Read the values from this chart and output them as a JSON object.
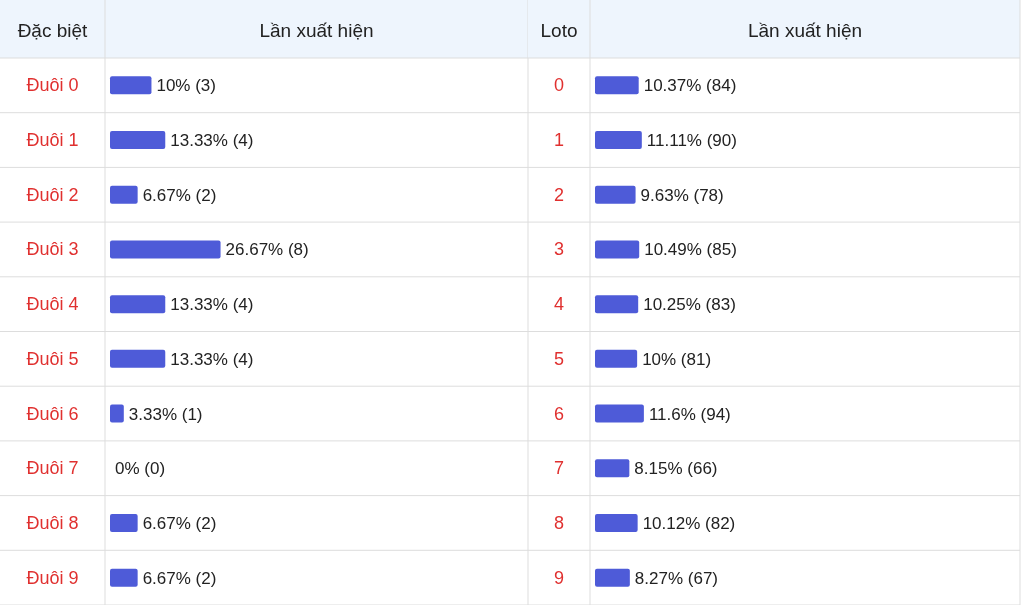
{
  "chart_data": [
    {
      "type": "bar",
      "orientation": "horizontal",
      "ylabel": "Đặc biệt",
      "xlabel": "Lần xuất hiện",
      "categories": [
        "Đuôi 0",
        "Đuôi 1",
        "Đuôi 2",
        "Đuôi 3",
        "Đuôi 4",
        "Đuôi 5",
        "Đuôi 6",
        "Đuôi 7",
        "Đuôi 8",
        "Đuôi 9"
      ],
      "values": [
        10,
        13.33,
        6.67,
        26.67,
        13.33,
        13.33,
        3.33,
        0,
        6.67,
        6.67
      ],
      "value_labels": [
        "10% (3)",
        "13.33% (4)",
        "6.67% (2)",
        "26.67% (8)",
        "13.33% (4)",
        "13.33% (4)",
        "3.33% (1)",
        "0% (0)",
        "6.67% (2)",
        "6.67% (2)"
      ],
      "color": "#4e5bd8",
      "xlim": [
        0,
        100
      ],
      "grid": "y"
    },
    {
      "type": "bar",
      "orientation": "horizontal",
      "ylabel": "Loto",
      "xlabel": "Lần xuất hiện",
      "categories": [
        "0",
        "1",
        "2",
        "3",
        "4",
        "5",
        "6",
        "7",
        "8",
        "9"
      ],
      "values": [
        10.37,
        11.11,
        9.63,
        10.49,
        10.25,
        10,
        11.6,
        8.15,
        10.12,
        8.27
      ],
      "value_labels": [
        "10.37% (84)",
        "11.11% (90)",
        "9.63% (78)",
        "10.49% (85)",
        "10.25% (83)",
        "10% (81)",
        "11.6% (94)",
        "8.15% (66)",
        "10.12% (82)",
        "8.27% (67)"
      ],
      "color": "#4e5bd8",
      "xlim": [
        0,
        100
      ],
      "grid": "y"
    }
  ]
}
